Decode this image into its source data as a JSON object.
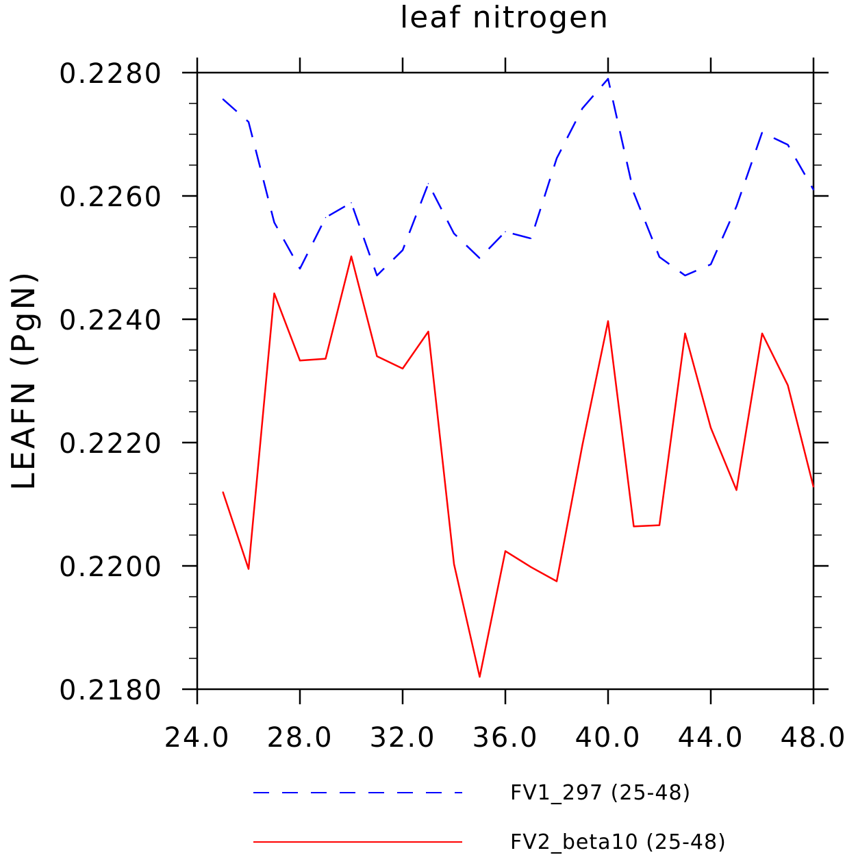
{
  "chart_data": {
    "type": "line",
    "title": "leaf nitrogen",
    "xlabel": "",
    "ylabel": "LEAFN  (PgN)",
    "xlim": [
      24.0,
      48.0
    ],
    "ylim": [
      0.218,
      0.228
    ],
    "x_ticks": [
      "24.0",
      "28.0",
      "32.0",
      "36.0",
      "40.0",
      "44.0",
      "48.0"
    ],
    "y_ticks": [
      "0.2180",
      "0.2200",
      "0.2220",
      "0.2240",
      "0.2260",
      "0.2280"
    ],
    "x": [
      25,
      26,
      27,
      28,
      29,
      30,
      31,
      32,
      33,
      34,
      35,
      36,
      37,
      38,
      39,
      40,
      41,
      42,
      43,
      44,
      45,
      46,
      47,
      48
    ],
    "series": [
      {
        "name": "FV1_297 (25-48)",
        "color": "#0000ff",
        "dash": "dashed",
        "values": [
          0.22757,
          0.2272,
          0.22557,
          0.22482,
          0.22565,
          0.22589,
          0.22471,
          0.22512,
          0.2262,
          0.22539,
          0.22499,
          0.22542,
          0.22531,
          0.22661,
          0.22742,
          0.2279,
          0.22605,
          0.22501,
          0.22471,
          0.22489,
          0.22583,
          0.22703,
          0.22683,
          0.2261
        ]
      },
      {
        "name": "FV2_beta10 (25-48)",
        "color": "#ff0000",
        "dash": "solid",
        "values": [
          0.2212,
          0.21995,
          0.22442,
          0.22333,
          0.22336,
          0.22502,
          0.2234,
          0.2232,
          0.2238,
          0.22003,
          0.2182,
          0.22024,
          0.21998,
          0.21975,
          0.22196,
          0.22397,
          0.22064,
          0.22066,
          0.22377,
          0.22224,
          0.22123,
          0.22377,
          0.22293,
          0.22128
        ]
      }
    ],
    "grid": false,
    "legend_position": "bottom"
  }
}
